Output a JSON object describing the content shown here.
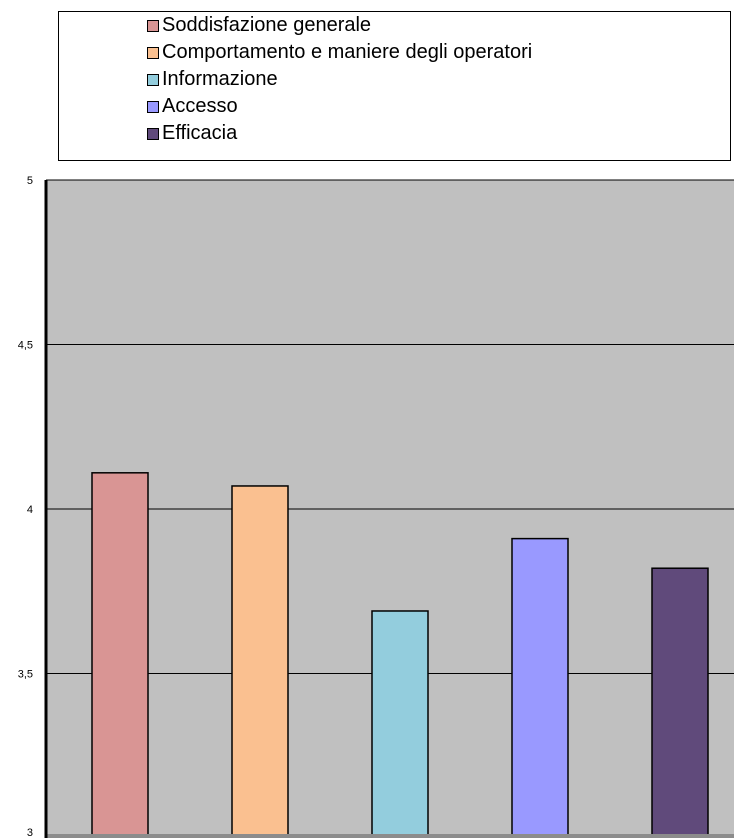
{
  "chart_data": {
    "type": "bar",
    "title": "",
    "xlabel": "",
    "ylabel": "",
    "categories": [
      "Soddisfazione generale",
      "Comportamento e maniere degli operatori",
      "Informazione",
      "Accesso",
      "Efficacia"
    ],
    "values": [
      4.11,
      4.07,
      3.69,
      3.91,
      3.82
    ],
    "colors": [
      "#d99594",
      "#fac090",
      "#93cddd",
      "#9999ff",
      "#604a7b"
    ],
    "ylim": [
      3,
      5
    ],
    "yticks": [
      3,
      3.5,
      4,
      4.5,
      5
    ],
    "ytick_labels": [
      "3",
      "3,5",
      "4",
      "4,5",
      "5"
    ],
    "grid": true,
    "legend_position": "top",
    "plot_background": "#c0c0c0"
  }
}
